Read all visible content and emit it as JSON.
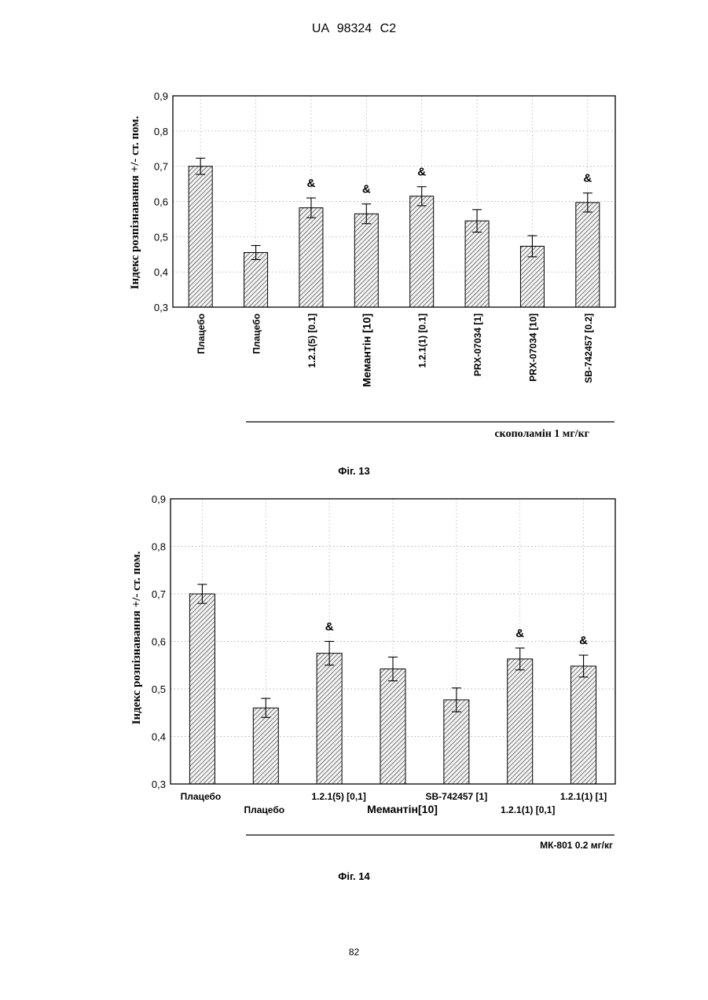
{
  "header": {
    "patent": "UA 98324 C2"
  },
  "page_number": "82",
  "chart_data": [
    {
      "type": "bar",
      "caption": "Фіг. 13",
      "ylabel": "Індекс розпізнавання +/- ст. пом.",
      "ylim": [
        0.3,
        0.9
      ],
      "yticks": [
        "0,3",
        "0,4",
        "0,5",
        "0,6",
        "0,7",
        "0,8",
        "0,9"
      ],
      "grid": true,
      "categories": [
        "Плацебо",
        "Плацебо",
        "1.2.1(5) [0.1]",
        "Мемантін [10]",
        "1.2.1(1) [0.1]",
        "PRX-07034 [1]",
        "PRX-07034 [10]",
        "SB-742457 [0.2]"
      ],
      "values": [
        0.7,
        0.455,
        0.582,
        0.565,
        0.615,
        0.545,
        0.473,
        0.597
      ],
      "errors": [
        0.023,
        0.02,
        0.028,
        0.028,
        0.027,
        0.032,
        0.03,
        0.027
      ],
      "markers": [
        "",
        "",
        "&",
        "&",
        "&",
        "",
        "",
        "&"
      ],
      "group_label": "скополамін 1 мг/кг"
    },
    {
      "type": "bar",
      "caption": "Фіг. 14",
      "ylabel": "Індекс розпізнавання +/- ст. пом.",
      "ylim": [
        0.3,
        0.9
      ],
      "yticks": [
        "0,3",
        "0,4",
        "0,5",
        "0,6",
        "0,7",
        "0,8",
        "0,9"
      ],
      "grid": true,
      "categories": [
        "Плацебо",
        "Плацебо",
        "1.2.1(5) [0,1]",
        "Мемантін[10]",
        "SB-742457 [1]",
        "1.2.1(1) [0,1]",
        "1.2.1(1) [1]"
      ],
      "values": [
        0.7,
        0.46,
        0.575,
        0.542,
        0.477,
        0.563,
        0.548
      ],
      "errors": [
        0.02,
        0.02,
        0.025,
        0.025,
        0.025,
        0.023,
        0.023
      ],
      "markers": [
        "",
        "",
        "&",
        "",
        "",
        "&",
        "&"
      ],
      "group_label": "МК-801 0.2 мг/кг"
    }
  ]
}
